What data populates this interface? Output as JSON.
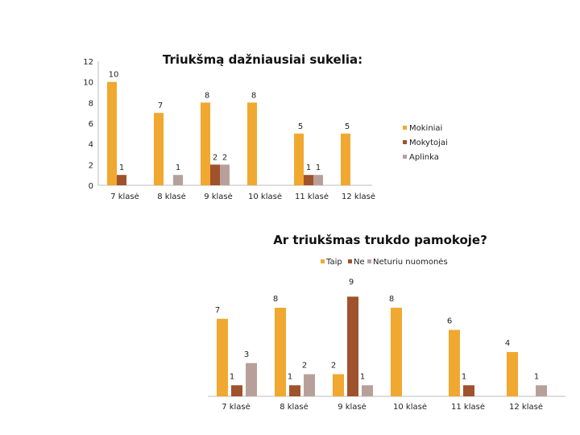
{
  "chart_data": [
    {
      "type": "bar",
      "title": "Triukšmą dažniausiai sukelia:",
      "categories": [
        "7 klasė",
        "8 klasė",
        "9 klasė",
        "10 klasė",
        "11 klasė",
        "12 klasė"
      ],
      "series": [
        {
          "name": "Mokiniai",
          "values": [
            10,
            7,
            8,
            8,
            5,
            5
          ],
          "data_labels": [
            "10",
            "7",
            "8",
            "8",
            "5",
            "5"
          ],
          "color": "#F0A830"
        },
        {
          "name": "Mokytojai",
          "values": [
            1,
            0,
            2,
            null,
            1,
            null
          ],
          "data_labels": [
            "1",
            "",
            "2",
            "",
            "1",
            ""
          ],
          "color": "#A0522D"
        },
        {
          "name": "Aplinka",
          "values": [
            null,
            1,
            2,
            null,
            1,
            null
          ],
          "data_labels": [
            "",
            "1",
            "2",
            "",
            "1",
            ""
          ],
          "color": "#B8A09A"
        }
      ],
      "ylim": [
        0,
        12
      ],
      "yticks": [
        "0",
        "2",
        "4",
        "6",
        "8",
        "10",
        "12"
      ],
      "grid": false,
      "legend_position": "right"
    },
    {
      "type": "bar",
      "title": "Ar triukšmas trukdo pamokoje?",
      "categories": [
        "7 klasė",
        "8 klasė",
        "9 klasė",
        "10 klasė",
        "11 klasė",
        "12 klasė"
      ],
      "series": [
        {
          "name": "Taip",
          "values": [
            7,
            8,
            2,
            8,
            6,
            4
          ],
          "data_labels": [
            "7",
            "8",
            "2",
            "8",
            "6",
            "4"
          ],
          "color": "#F0A830"
        },
        {
          "name": "Ne",
          "values": [
            1,
            1,
            9,
            null,
            1,
            null
          ],
          "data_labels": [
            "1",
            "1",
            "",
            "",
            "1",
            ""
          ],
          "color": "#A0522D"
        },
        {
          "name": "Neturiu nuomonės",
          "values": [
            3,
            2,
            1,
            null,
            null,
            1
          ],
          "data_labels": [
            "3",
            "2",
            "1",
            "",
            "",
            "1"
          ],
          "color": "#B8A09A"
        }
      ],
      "ylim": [
        0,
        9.6
      ],
      "grid": false,
      "legend_position": "top",
      "top_label": "9"
    }
  ]
}
